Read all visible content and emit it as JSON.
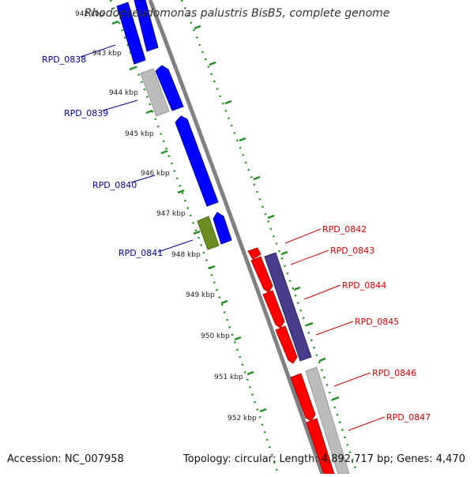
{
  "title": "Rhodopseudomonas palustris BisB5, complete genome",
  "accession": "Accession: NC_007958",
  "summary": "Topology: circular; Length: 4,892,717 bp; Genes: 4,470",
  "colors": {
    "backbone": "#808080",
    "ticks": "#228b22",
    "forward_gene": "#0000ff",
    "reverse_gene": "#ff0000",
    "other_gene": "#bcbcbc",
    "olive_gene": "#6b8e23",
    "purple_gene": "#483d8b",
    "forward_label": "#00008b",
    "reverse_label": "#cc0000"
  },
  "tick_labels": [
    "942 kbp",
    "943 kbp",
    "944 kbp",
    "945 kbp",
    "946 kbp",
    "947 kbp",
    "948 kbp",
    "949 kbp",
    "950 kbp",
    "951 kbp",
    "952 kbp"
  ],
  "forward_labels": [
    "RPD_0838",
    "RPD_0839",
    "RPD_0840",
    "RPD_0841"
  ],
  "reverse_labels": [
    "RPD_0842",
    "RPD_0843",
    "RPD_0844",
    "RPD_0845",
    "RPD_0846",
    "RPD_0847"
  ]
}
